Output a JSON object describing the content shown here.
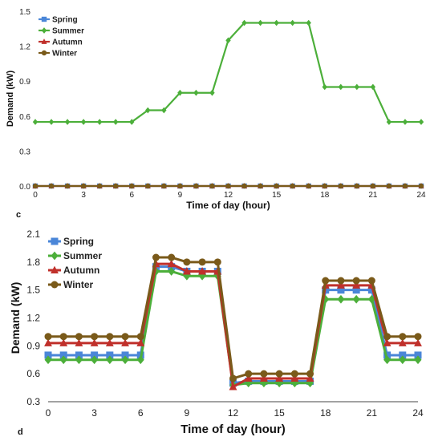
{
  "chart_data": [
    {
      "type": "line",
      "panel_label": "",
      "xlabel": "Time of day (hour)",
      "ylabel": "Demand (kW)",
      "xlim": [
        0,
        24
      ],
      "ylim": [
        0,
        1.5
      ],
      "xticks": [
        0,
        3,
        6,
        9,
        12,
        15,
        18,
        21,
        24
      ],
      "yticks": [
        "0.0",
        "0.3",
        "0.6",
        "0.9",
        "1.2",
        "1.5"
      ],
      "x": [
        0,
        1,
        2,
        3,
        4,
        5,
        6,
        7,
        8,
        9,
        10,
        11,
        12,
        13,
        14,
        15,
        16,
        17,
        18,
        19,
        20,
        21,
        22,
        23,
        24
      ],
      "grid": false,
      "legend_position": "top-left",
      "series": [
        {
          "name": "Spring",
          "color": "#4a86d8",
          "marker": "square",
          "values": [
            0,
            0,
            0,
            0,
            0,
            0,
            0,
            0,
            0,
            0,
            0,
            0,
            0,
            0,
            0,
            0,
            0,
            0,
            0,
            0,
            0,
            0,
            0,
            0,
            0
          ]
        },
        {
          "name": "Summer",
          "color": "#4caf3a",
          "marker": "diamond",
          "values": [
            0.55,
            0.55,
            0.55,
            0.55,
            0.55,
            0.55,
            0.55,
            0.65,
            0.65,
            0.8,
            0.8,
            0.8,
            1.25,
            1.4,
            1.4,
            1.4,
            1.4,
            1.4,
            0.85,
            0.85,
            0.85,
            0.85,
            0.55,
            0.55,
            0.55
          ]
        },
        {
          "name": "Autumn",
          "color": "#c0302b",
          "marker": "triangle",
          "values": [
            0,
            0,
            0,
            0,
            0,
            0,
            0,
            0,
            0,
            0,
            0,
            0,
            0,
            0,
            0,
            0,
            0,
            0,
            0,
            0,
            0,
            0,
            0,
            0,
            0
          ]
        },
        {
          "name": "Winter",
          "color": "#7a5a1a",
          "marker": "circle",
          "values": [
            0,
            0,
            0,
            0,
            0,
            0,
            0,
            0,
            0,
            0,
            0,
            0,
            0,
            0,
            0,
            0,
            0,
            0,
            0,
            0,
            0,
            0,
            0,
            0,
            0
          ]
        }
      ]
    },
    {
      "type": "line",
      "panel_label": "c",
      "xlabel": "Time of day (hour)",
      "ylabel": "Demand (kW)",
      "xlim": [
        0,
        24
      ],
      "ylim": [
        0.3,
        2.1
      ],
      "xticks": [
        0,
        3,
        6,
        9,
        12,
        15,
        18,
        21,
        24
      ],
      "yticks": [
        "0.3",
        "0.6",
        "0.9",
        "1.2",
        "1.5",
        "1.8",
        "2.1"
      ],
      "x": [
        0,
        1,
        2,
        3,
        4,
        5,
        6,
        7,
        8,
        9,
        10,
        11,
        12,
        13,
        14,
        15,
        16,
        17,
        18,
        19,
        20,
        21,
        22,
        23,
        24
      ],
      "grid": false,
      "legend_position": "top-left",
      "series": [
        {
          "name": "Spring",
          "color": "#4a86d8",
          "marker": "square",
          "values": [
            0.8,
            0.8,
            0.8,
            0.8,
            0.8,
            0.8,
            0.8,
            1.75,
            1.75,
            1.7,
            1.7,
            1.7,
            0.5,
            0.52,
            0.52,
            0.52,
            0.52,
            0.52,
            1.5,
            1.5,
            1.5,
            1.5,
            0.8,
            0.8,
            0.8
          ]
        },
        {
          "name": "Summer",
          "color": "#4caf3a",
          "marker": "diamond",
          "values": [
            0.75,
            0.75,
            0.75,
            0.75,
            0.75,
            0.75,
            0.75,
            1.7,
            1.7,
            1.65,
            1.65,
            1.65,
            0.48,
            0.5,
            0.5,
            0.5,
            0.5,
            0.5,
            1.4,
            1.4,
            1.4,
            1.4,
            0.75,
            0.75,
            0.75
          ]
        },
        {
          "name": "Autumn",
          "color": "#c0302b",
          "marker": "triangle",
          "values": [
            0.93,
            0.93,
            0.93,
            0.93,
            0.93,
            0.93,
            0.93,
            1.78,
            1.78,
            1.7,
            1.7,
            1.7,
            0.46,
            0.55,
            0.55,
            0.55,
            0.55,
            0.55,
            1.55,
            1.55,
            1.55,
            1.55,
            0.93,
            0.93,
            0.93
          ]
        },
        {
          "name": "Winter",
          "color": "#7a5a1a",
          "marker": "circle",
          "values": [
            1.0,
            1.0,
            1.0,
            1.0,
            1.0,
            1.0,
            1.0,
            1.85,
            1.85,
            1.8,
            1.8,
            1.8,
            0.55,
            0.6,
            0.6,
            0.6,
            0.6,
            0.6,
            1.6,
            1.6,
            1.6,
            1.6,
            1.0,
            1.0,
            1.0
          ]
        }
      ]
    }
  ],
  "bottom_label": "d"
}
